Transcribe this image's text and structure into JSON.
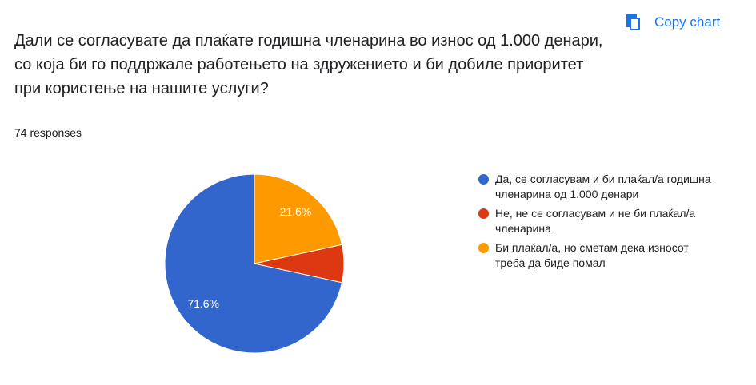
{
  "header": {
    "question": "Дали се согласувате да плаќате годишна членарина во износ од 1.000 денари, со која би го поддржале работењето на здружението и би добиле приоритет при користење на нашите услуги?",
    "copy_label": "Copy chart",
    "copy_icon": "copy-icon",
    "responses": "74 responses"
  },
  "chart_data": {
    "type": "pie",
    "categories": [
      "Да, се согласувам и би плаќал/а годишна членарина од 1.000 денари",
      "Не, не се согласувам и не би плаќал/а членарина",
      "Би плаќал/а, но сметам дека износот треба да биде помал"
    ],
    "values": [
      71.6,
      6.8,
      21.6
    ],
    "data_labels": [
      "71.6%",
      "",
      "21.6%"
    ],
    "colors": [
      "#3366cc",
      "#dc3912",
      "#ff9900"
    ],
    "start_angle_degrees": 90,
    "direction": "counterclockwise",
    "legend_position": "right"
  }
}
